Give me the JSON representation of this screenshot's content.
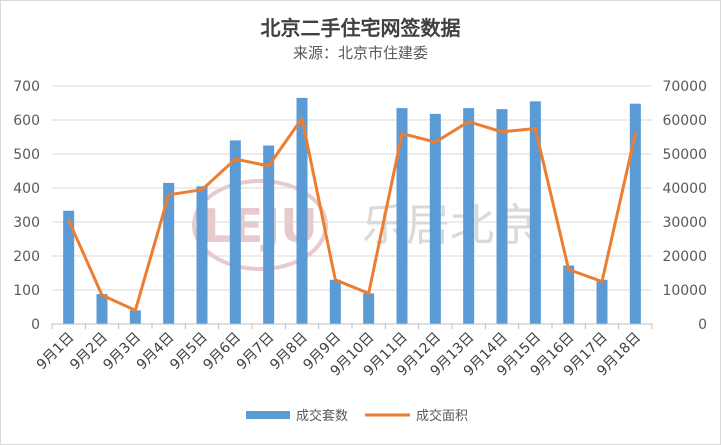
{
  "chart_data": {
    "type": "bar+line",
    "title": "北京二手住宅网签数据",
    "subtitle": "来源：北京市住建委",
    "categories": [
      "9月1日",
      "9月2日",
      "9月3日",
      "9月4日",
      "9月5日",
      "9月6日",
      "9月7日",
      "9月8日",
      "9月9日",
      "9月10日",
      "9月11日",
      "9月12日",
      "9月13日",
      "9月14日",
      "9月15日",
      "9月16日",
      "9月17日",
      "9月18日"
    ],
    "series": [
      {
        "name": "成交套数",
        "type": "bar",
        "axis": "left",
        "color": "#5b9bd5",
        "values": [
          333,
          88,
          40,
          415,
          405,
          540,
          525,
          665,
          130,
          90,
          635,
          618,
          635,
          632,
          655,
          172,
          130,
          648
        ]
      },
      {
        "name": "成交面积",
        "type": "line",
        "axis": "right",
        "color": "#ed7d31",
        "values": [
          30500,
          8500,
          4000,
          38000,
          39500,
          48500,
          46500,
          60500,
          13000,
          9000,
          56000,
          53500,
          59500,
          56500,
          57500,
          16000,
          12500,
          56000
        ]
      }
    ],
    "y_left": {
      "min": 0,
      "max": 700,
      "step": 100,
      "ticks": [
        "0",
        "100",
        "200",
        "300",
        "400",
        "500",
        "600",
        "700"
      ]
    },
    "y_right": {
      "min": 0,
      "max": 70000,
      "step": 10000,
      "ticks": [
        "0",
        "10000",
        "20000",
        "30000",
        "40000",
        "50000",
        "60000",
        "70000"
      ]
    },
    "grid": true,
    "legend_position": "bottom"
  },
  "watermark": {
    "logo_text": "LEJU",
    "brand_text": "乐居北京"
  }
}
